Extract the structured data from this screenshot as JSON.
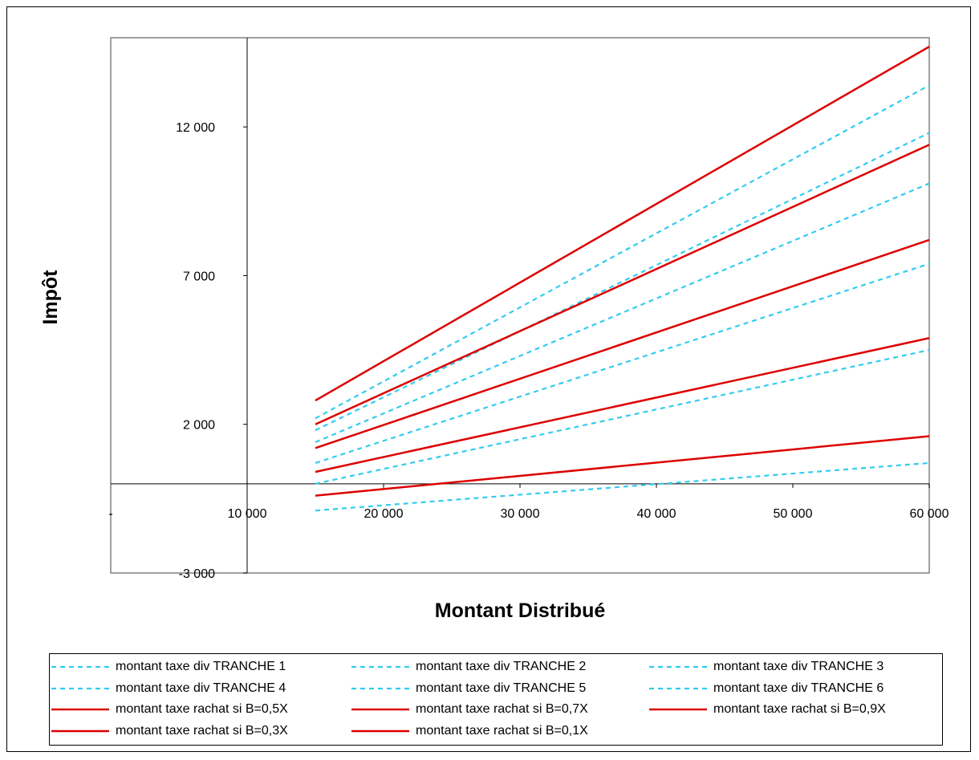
{
  "chart_data": {
    "type": "line",
    "title": "",
    "xlabel": "Montant Distribué",
    "ylabel": "Impôt",
    "xlim": [
      0,
      60000
    ],
    "ylim": [
      -3000,
      15000
    ],
    "x_ticks": [
      {
        "value": 0,
        "label": "-"
      },
      {
        "value": 10000,
        "label": "10 000"
      },
      {
        "value": 20000,
        "label": "20 000"
      },
      {
        "value": 30000,
        "label": "30 000"
      },
      {
        "value": 40000,
        "label": "40 000"
      },
      {
        "value": 50000,
        "label": "50 000"
      },
      {
        "value": 60000,
        "label": "60 000"
      }
    ],
    "y_ticks": [
      {
        "value": 12000,
        "label": "12 000"
      },
      {
        "value": 7000,
        "label": "7 000"
      },
      {
        "value": 2000,
        "label": "2 000"
      },
      {
        "value": -3000,
        "label": "-3 000"
      }
    ],
    "grid": false,
    "legend_position": "bottom",
    "colors": {
      "dividend": "#33CCEE",
      "rachat": "#DD0000"
    },
    "series": [
      {
        "name": "montant taxe div TRANCHE 1",
        "style": "dashed",
        "color": "#33CCEE",
        "x": [
          15000,
          60000
        ],
        "y": [
          -900,
          700
        ]
      },
      {
        "name": "montant taxe div TRANCHE 2",
        "style": "dashed",
        "color": "#33CCEE",
        "x": [
          15000,
          60000
        ],
        "y": [
          0,
          4500
        ]
      },
      {
        "name": "montant taxe div TRANCHE 3",
        "style": "dashed",
        "color": "#33CCEE",
        "x": [
          15000,
          60000
        ],
        "y": [
          700,
          7400
        ]
      },
      {
        "name": "montant taxe div TRANCHE 4",
        "style": "dashed",
        "color": "#33CCEE",
        "x": [
          15000,
          60000
        ],
        "y": [
          1400,
          10100
        ]
      },
      {
        "name": "montant taxe div TRANCHE 5",
        "style": "dashed",
        "color": "#33CCEE",
        "x": [
          15000,
          60000
        ],
        "y": [
          1800,
          11800
        ]
      },
      {
        "name": "montant taxe div TRANCHE 6",
        "style": "dashed",
        "color": "#33CCEE",
        "x": [
          15000,
          60000
        ],
        "y": [
          2200,
          13400
        ]
      },
      {
        "name": "montant taxe rachat si B=0,5X",
        "style": "solid",
        "color": "#DD0000",
        "x": [
          15000,
          60000
        ],
        "y": [
          1200,
          8200
        ]
      },
      {
        "name": "montant taxe rachat si B=0,7X",
        "style": "solid",
        "color": "#DD0000",
        "x": [
          15000,
          60000
        ],
        "y": [
          2000,
          11400
        ]
      },
      {
        "name": "montant taxe rachat si B=0,9X",
        "style": "solid",
        "color": "#DD0000",
        "x": [
          15000,
          60000
        ],
        "y": [
          2800,
          14700
        ]
      },
      {
        "name": "montant taxe rachat si B=0,3X",
        "style": "solid",
        "color": "#DD0000",
        "x": [
          15000,
          60000
        ],
        "y": [
          400,
          4900
        ]
      },
      {
        "name": "montant taxe rachat si B=0,1X",
        "style": "solid",
        "color": "#DD0000",
        "x": [
          15000,
          60000
        ],
        "y": [
          -400,
          1600
        ]
      }
    ]
  }
}
